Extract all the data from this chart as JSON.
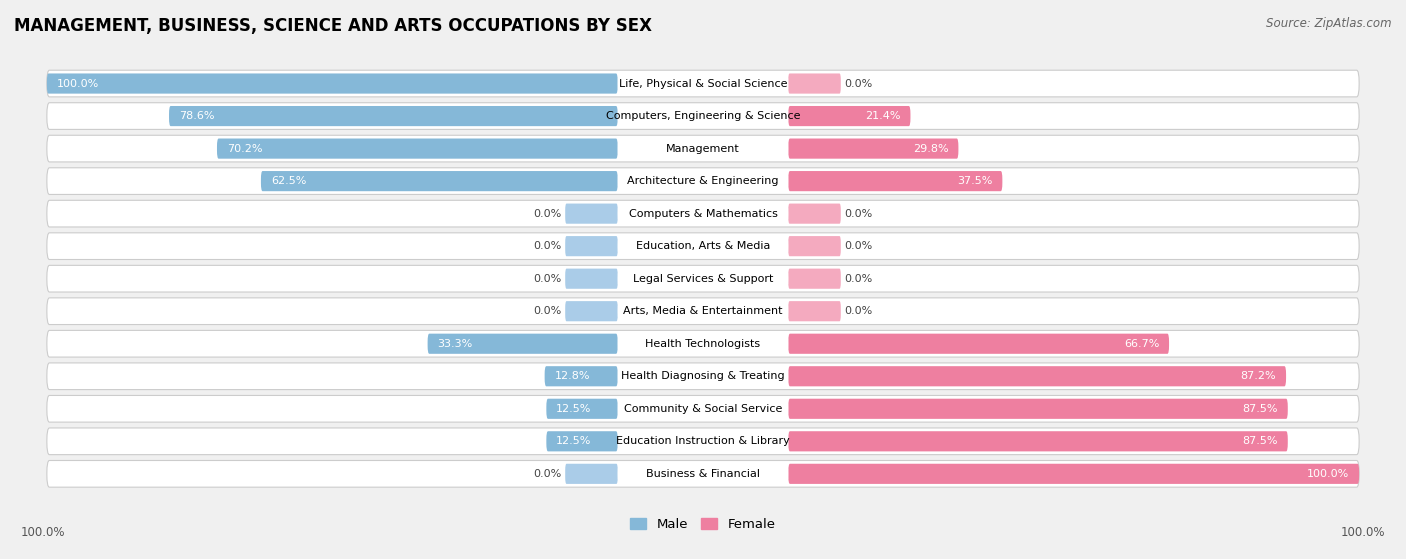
{
  "title": "MANAGEMENT, BUSINESS, SCIENCE AND ARTS OCCUPATIONS BY SEX",
  "source": "Source: ZipAtlas.com",
  "categories": [
    "Life, Physical & Social Science",
    "Computers, Engineering & Science",
    "Management",
    "Architecture & Engineering",
    "Computers & Mathematics",
    "Education, Arts & Media",
    "Legal Services & Support",
    "Arts, Media & Entertainment",
    "Health Technologists",
    "Health Diagnosing & Treating",
    "Community & Social Service",
    "Education Instruction & Library",
    "Business & Financial"
  ],
  "male": [
    100.0,
    78.6,
    70.2,
    62.5,
    0.0,
    0.0,
    0.0,
    0.0,
    33.3,
    12.8,
    12.5,
    12.5,
    0.0
  ],
  "female": [
    0.0,
    21.4,
    29.8,
    37.5,
    0.0,
    0.0,
    0.0,
    0.0,
    66.7,
    87.2,
    87.5,
    87.5,
    100.0
  ],
  "male_color": "#85b8d8",
  "female_color": "#ee7fa0",
  "male_color_stub": "#aacce8",
  "female_color_stub": "#f4aabf",
  "male_label": "Male",
  "female_label": "Female",
  "bg_color": "#f0f0f0",
  "row_bg_color": "#ffffff",
  "bar_height": 0.62,
  "title_fontsize": 12,
  "source_fontsize": 8.5,
  "label_fontsize": 8,
  "category_fontsize": 8
}
